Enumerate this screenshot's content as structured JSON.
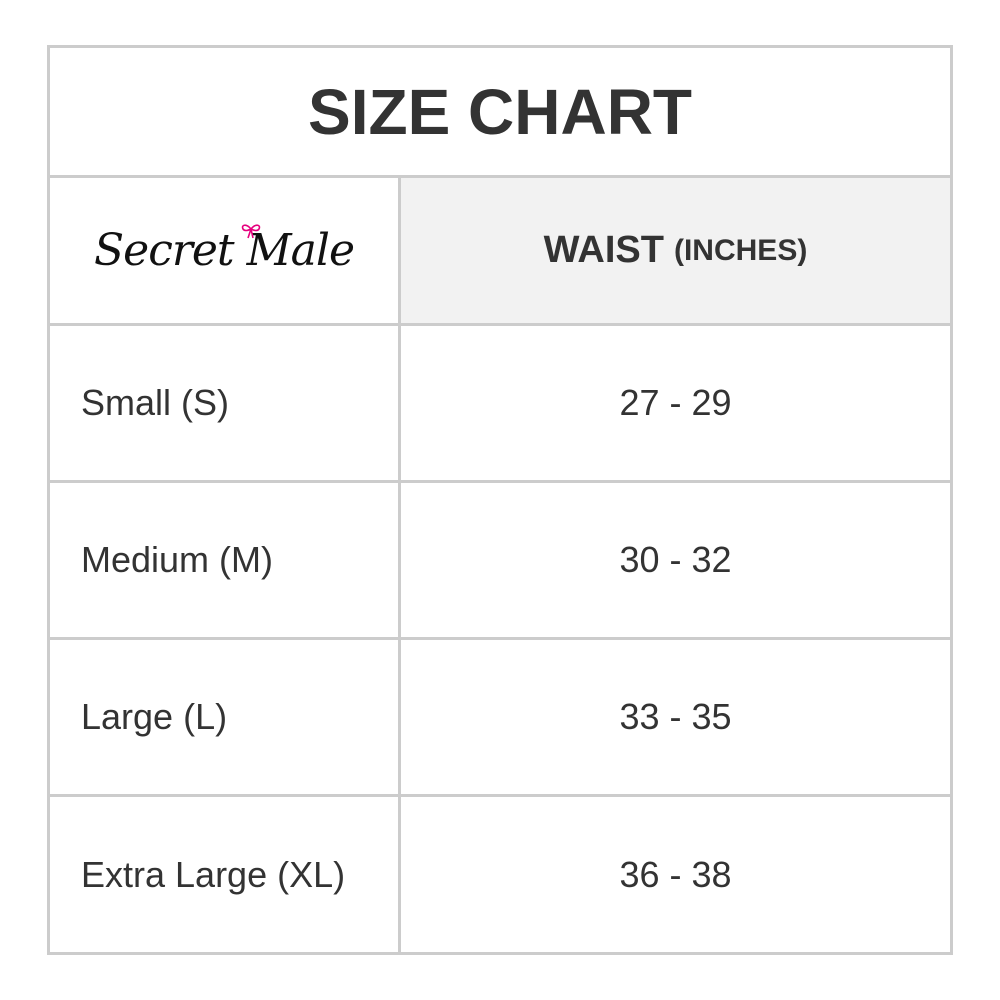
{
  "title": "SIZE CHART",
  "logo": {
    "text": "Secret Male",
    "accent_color": "#e6007e"
  },
  "header": {
    "column_label": "WAIST",
    "column_unit": "(INCHES)"
  },
  "rows": [
    {
      "size": "Small (S)",
      "waist": "27 - 29"
    },
    {
      "size": "Medium (M)",
      "waist": "30 - 32"
    },
    {
      "size": "Large (L)",
      "waist": "33 - 35"
    },
    {
      "size": "Extra Large (XL)",
      "waist": "36 - 38"
    }
  ]
}
